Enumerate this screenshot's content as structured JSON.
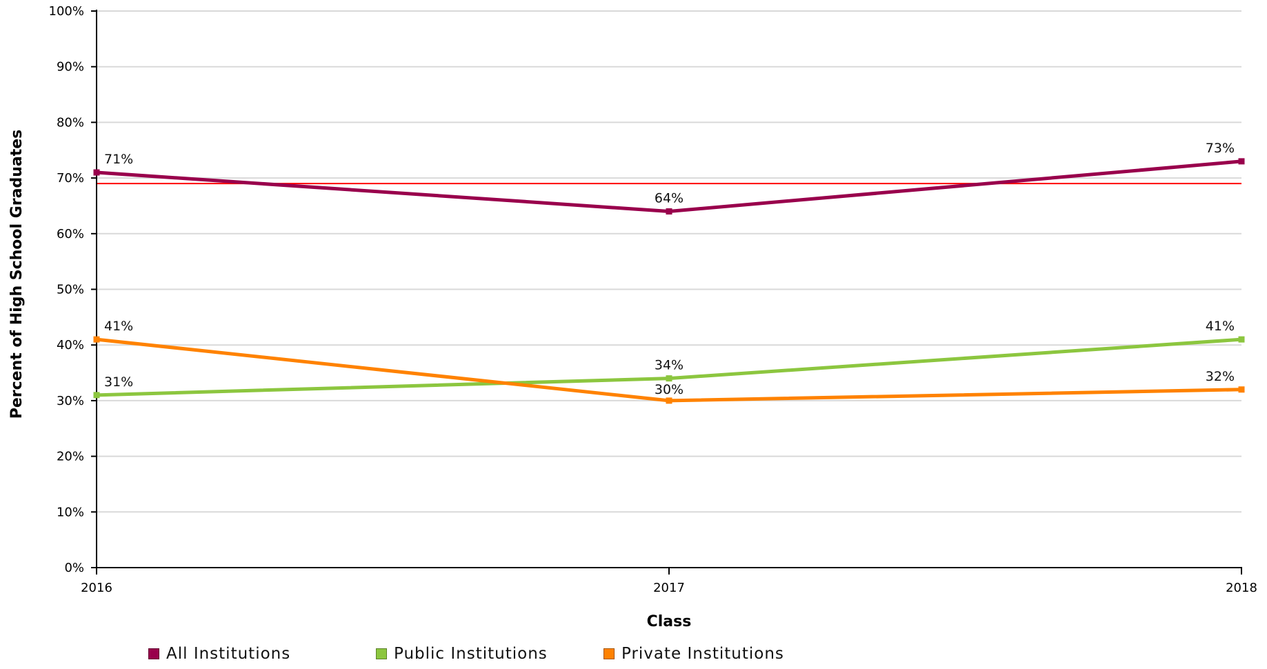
{
  "chart_data": {
    "type": "line",
    "xlabel": "Class",
    "ylabel": "Percent of High School Graduates",
    "categories": [
      "2016",
      "2017",
      "2018"
    ],
    "ylim": [
      0,
      100
    ],
    "yticks": [
      0,
      10,
      20,
      30,
      40,
      50,
      60,
      70,
      80,
      90,
      100
    ],
    "ytick_suffix": "%",
    "grid": true,
    "reference_line": {
      "value": 69,
      "color": "#ff0000"
    },
    "legend_position": "bottom",
    "series": [
      {
        "name": "All Institutions",
        "color": "#99004c",
        "values": [
          71,
          64,
          73
        ],
        "labels": [
          "71%",
          "64%",
          "73%"
        ]
      },
      {
        "name": "Public Institutions",
        "color": "#8cc63f",
        "values": [
          31,
          34,
          41
        ],
        "labels": [
          "31%",
          "34%",
          "41%"
        ]
      },
      {
        "name": "Private Institutions",
        "color": "#ff8200",
        "values": [
          41,
          30,
          32
        ],
        "labels": [
          "41%",
          "30%",
          "32%"
        ]
      }
    ]
  }
}
